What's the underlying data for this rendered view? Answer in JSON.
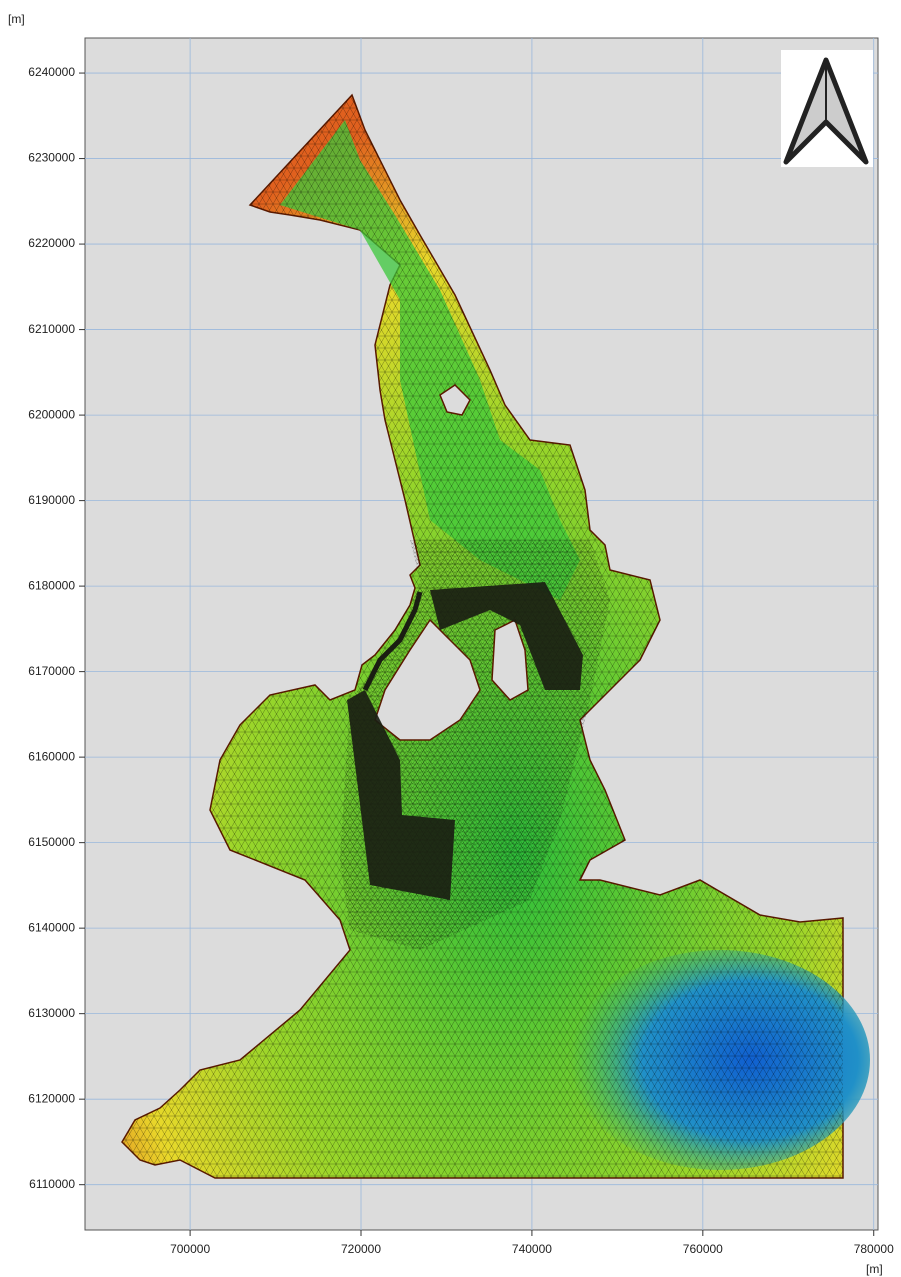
{
  "chart_data": {
    "type": "map",
    "y_unit": "[m]",
    "x_unit": "[m]",
    "xlim": [
      687700,
      780500
    ],
    "ylim": [
      6104700,
      6244100
    ],
    "xticks": [
      700000,
      720000,
      740000,
      760000,
      780000
    ],
    "yticks": [
      6110000,
      6120000,
      6130000,
      6140000,
      6150000,
      6160000,
      6170000,
      6180000,
      6190000,
      6200000,
      6210000,
      6220000,
      6230000,
      6240000
    ],
    "grid": true
  }
}
